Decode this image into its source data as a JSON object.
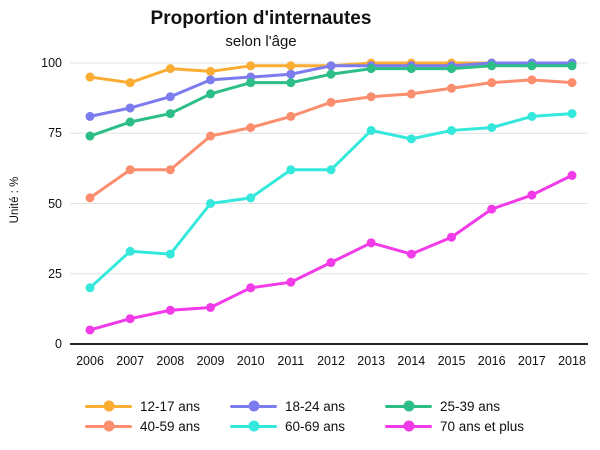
{
  "chart_data": {
    "type": "line",
    "title": "Proportion d'internautes",
    "subtitle": "selon l'âge",
    "ylabel": "Unité : %",
    "xlabel": "",
    "x": [
      2006,
      2007,
      2008,
      2009,
      2010,
      2011,
      2012,
      2013,
      2014,
      2015,
      2016,
      2017,
      2018
    ],
    "y_ticks": [
      0,
      25,
      50,
      75,
      100
    ],
    "ylim": [
      0,
      100
    ],
    "grid": "horizontal",
    "legend_position": "bottom",
    "axis_color": "#262626",
    "gridline_color": "#e4e4e4",
    "series": [
      {
        "name": "12-17 ans",
        "color": "#FBAC33",
        "values": [
          95,
          93,
          98,
          97,
          99,
          99,
          99,
          100,
          100,
          100,
          100,
          100,
          100
        ]
      },
      {
        "name": "18-24 ans",
        "color": "#7C7CEF",
        "values": [
          81,
          84,
          88,
          94,
          95,
          96,
          99,
          99,
          99,
          99,
          100,
          100,
          100
        ]
      },
      {
        "name": "25-39 ans",
        "color": "#2DBE87",
        "values": [
          74,
          79,
          82,
          89,
          93,
          93,
          96,
          98,
          98,
          98,
          99,
          99,
          99
        ]
      },
      {
        "name": "40-59 ans",
        "color": "#FA8E6E",
        "values": [
          52,
          62,
          62,
          74,
          77,
          81,
          86,
          88,
          89,
          91,
          93,
          94,
          93
        ]
      },
      {
        "name": "60-69 ans",
        "color": "#35E8DC",
        "values": [
          20,
          33,
          32,
          50,
          52,
          62,
          62,
          76,
          73,
          76,
          77,
          81,
          82
        ]
      },
      {
        "name": "70 ans et plus",
        "color": "#F23BE8",
        "values": [
          5,
          9,
          12,
          13,
          20,
          22,
          29,
          36,
          32,
          38,
          48,
          53,
          60
        ]
      }
    ]
  }
}
